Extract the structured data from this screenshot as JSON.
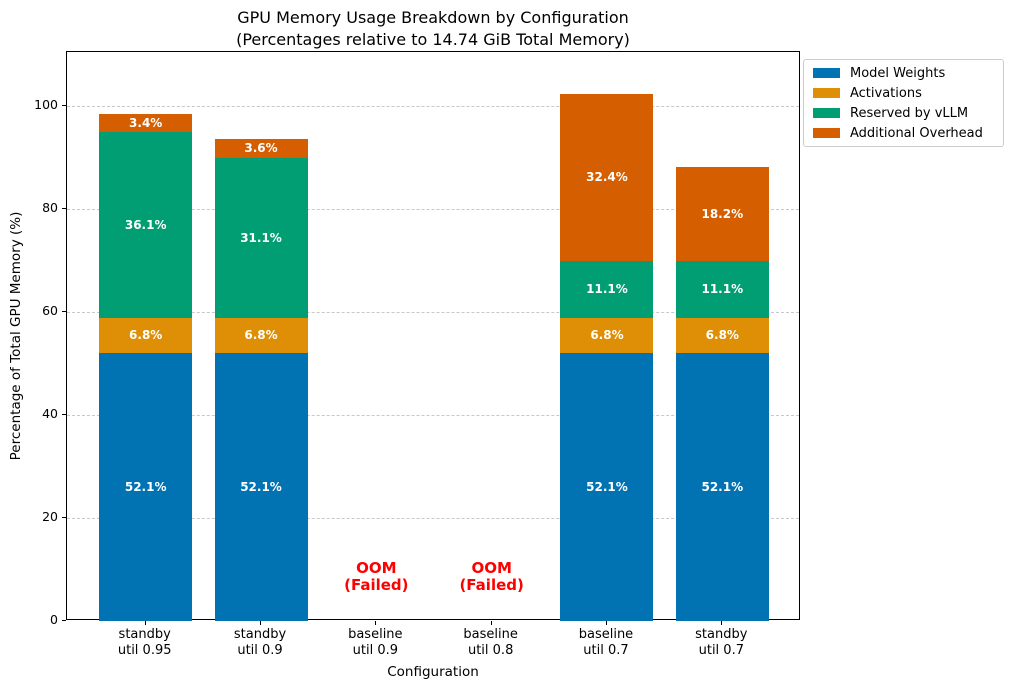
{
  "chart_data": {
    "type": "bar",
    "stacked": true,
    "title": "GPU Memory Usage Breakdown by Configuration",
    "subtitle": "(Percentages relative to 14.74 GiB Total Memory)",
    "xlabel": "Configuration",
    "ylabel": "Percentage of Total GPU Memory (%)",
    "ylim": [
      0,
      110.5
    ],
    "yticks": [
      0,
      20,
      40,
      60,
      80,
      100
    ],
    "grid": {
      "axis": "y",
      "style": "dashed",
      "color": "#c8c8c8"
    },
    "legend_position": "outside-upper-right",
    "categories": [
      {
        "line1": "standby",
        "line2": "util 0.95"
      },
      {
        "line1": "standby",
        "line2": "util 0.9"
      },
      {
        "line1": "baseline",
        "line2": "util 0.9"
      },
      {
        "line1": "baseline",
        "line2": "util 0.8"
      },
      {
        "line1": "baseline",
        "line2": "util 0.7"
      },
      {
        "line1": "standby",
        "line2": "util 0.7"
      }
    ],
    "series": [
      {
        "name": "Model Weights",
        "color": "#0173b2",
        "values": [
          52.1,
          52.1,
          null,
          null,
          52.1,
          52.1
        ]
      },
      {
        "name": "Activations",
        "color": "#de8f05",
        "values": [
          6.8,
          6.8,
          null,
          null,
          6.8,
          6.8
        ]
      },
      {
        "name": "Reserved by vLLM",
        "color": "#029e73",
        "values": [
          36.1,
          31.1,
          null,
          null,
          11.1,
          11.1
        ]
      },
      {
        "name": "Additional Overhead",
        "color": "#d55e00",
        "values": [
          3.4,
          3.6,
          null,
          null,
          32.4,
          18.2
        ]
      }
    ],
    "value_label_suffix": "%",
    "value_label_color": "#ffffff",
    "failed": {
      "category_indices": [
        2,
        3
      ],
      "lines": [
        "OOM",
        "(Failed)"
      ],
      "color": "#ff0000",
      "y_center_pct": 8.5
    }
  }
}
